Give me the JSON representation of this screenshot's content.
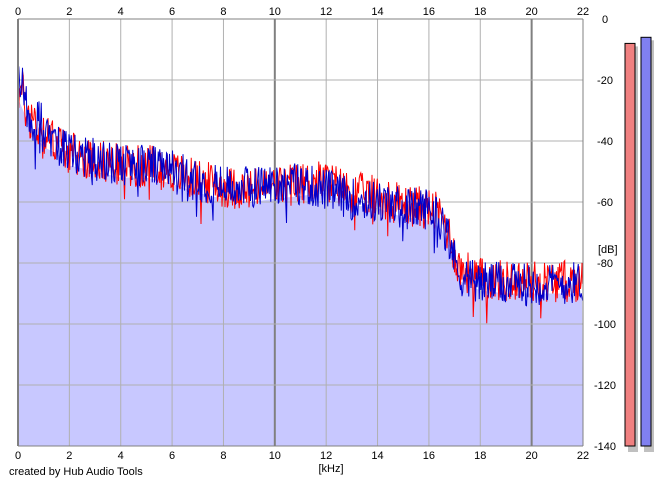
{
  "chart_data": {
    "type": "area",
    "xlabel": "[kHz]",
    "ylabel": "[dB]",
    "xlim": [
      0,
      22
    ],
    "ylim": [
      -140,
      0
    ],
    "xticks": [
      0,
      2,
      4,
      6,
      8,
      10,
      12,
      14,
      16,
      18,
      20,
      22
    ],
    "yticks": [
      0,
      -20,
      -40,
      -60,
      -80,
      -100,
      -120,
      -140
    ],
    "grid": true,
    "fill_color": "#c8c8ff",
    "series": [
      {
        "color": "#ff0000",
        "x": [
          0,
          0.2,
          0.5,
          1,
          1.5,
          2,
          3,
          4,
          5,
          6,
          7,
          8,
          9,
          10,
          11,
          12,
          13,
          14,
          15,
          16,
          16.5,
          16.8,
          17,
          17.2,
          18,
          19,
          20,
          21,
          22
        ],
        "y": [
          -22,
          -26,
          -32,
          -38,
          -40,
          -44,
          -46,
          -48,
          -48,
          -50,
          -53,
          -55,
          -56,
          -55,
          -54,
          -53,
          -57,
          -58,
          -61,
          -62,
          -65,
          -71,
          -77,
          -82,
          -85,
          -86,
          -86,
          -86,
          -86
        ]
      },
      {
        "color": "#0000cc",
        "x": [
          0,
          0.2,
          0.5,
          1,
          1.5,
          2,
          3,
          4,
          5,
          6,
          7,
          8,
          9,
          10,
          11,
          12,
          13,
          14,
          15,
          16,
          16.5,
          16.8,
          17,
          17.2,
          18,
          19,
          20,
          21,
          22
        ],
        "y": [
          -20,
          -25,
          -31,
          -37,
          -41,
          -44,
          -46,
          -48,
          -48,
          -50,
          -53,
          -55,
          -55,
          -54,
          -54,
          -56,
          -59,
          -60,
          -62,
          -62,
          -66,
          -72,
          -79,
          -84,
          -86,
          -87,
          -87,
          -87,
          -86
        ]
      }
    ],
    "level_meters": [
      {
        "color": "#f08080",
        "value": -8
      },
      {
        "color": "#8080f0",
        "value": -6
      }
    ]
  },
  "footer": {
    "credit": "created by Hub Audio Tools"
  }
}
